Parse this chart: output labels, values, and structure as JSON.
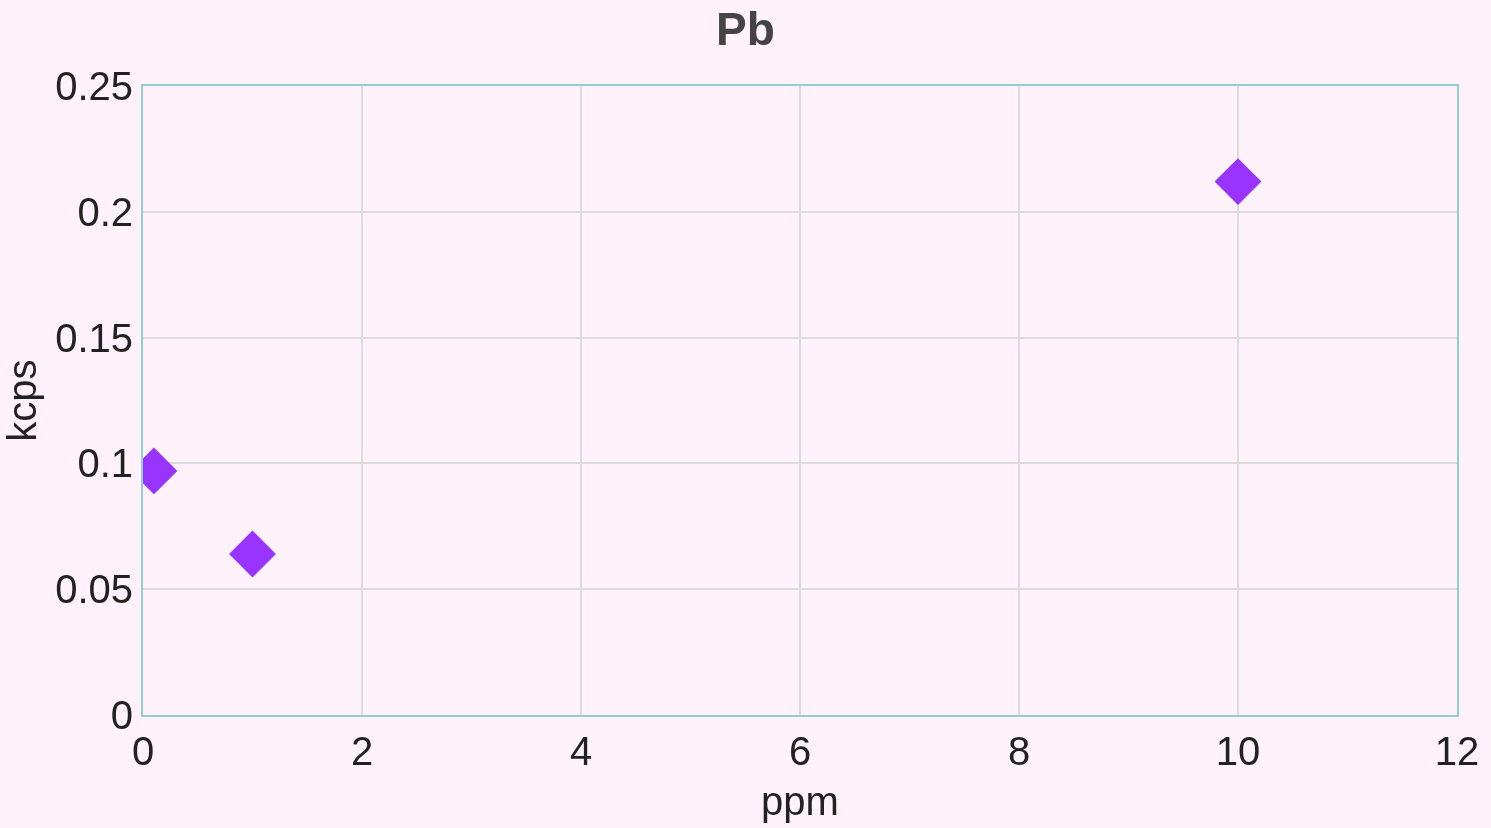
{
  "chart_data": {
    "type": "scatter",
    "title": "Pb",
    "xlabel": "ppm",
    "ylabel": "kcps",
    "x": [
      0.1,
      1,
      10
    ],
    "values": [
      0.097,
      0.064,
      0.212
    ],
    "color": "#9933ff",
    "marker": "diamond",
    "xlim": [
      0,
      12
    ],
    "xticks": [
      0,
      2,
      4,
      6,
      8,
      10,
      12
    ],
    "ylim": [
      0,
      0.25
    ],
    "yticks": [
      0,
      0.05,
      0.1,
      0.15,
      0.2,
      0.25
    ],
    "grid": true,
    "legend": false
  }
}
